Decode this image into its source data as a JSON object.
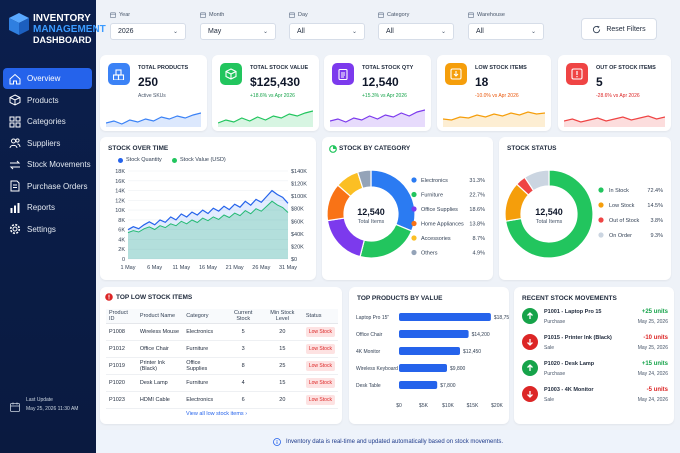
{
  "brand": {
    "line1": "INVENTORY",
    "line2": "MANAGEMENT",
    "line3": "DASHBOARD"
  },
  "colors": {
    "primary": "#2563eb",
    "sidebar": "#0b1f4d",
    "green": "#22c55e",
    "red": "#dc2626",
    "orange": "#f59e0b",
    "purple": "#7c3aed",
    "gray": "#cbd5e1"
  },
  "nav": [
    {
      "label": "Overview",
      "icon": "home-icon"
    },
    {
      "label": "Products",
      "icon": "box-icon"
    },
    {
      "label": "Categories",
      "icon": "grid-icon"
    },
    {
      "label": "Suppliers",
      "icon": "users-icon"
    },
    {
      "label": "Stock Movements",
      "icon": "swap-icon"
    },
    {
      "label": "Purchase Orders",
      "icon": "document-icon"
    },
    {
      "label": "Reports",
      "icon": "chart-icon"
    },
    {
      "label": "Settings",
      "icon": "gear-icon"
    }
  ],
  "last_update": {
    "label": "Last Update",
    "value": "May 25, 2026  11:30 AM"
  },
  "filters": [
    {
      "label": "Year",
      "value": "2026"
    },
    {
      "label": "Month",
      "value": "May"
    },
    {
      "label": "Day",
      "value": "All"
    },
    {
      "label": "Category",
      "value": "All"
    },
    {
      "label": "Warehouse",
      "value": "All"
    }
  ],
  "reset_label": "Reset Filters",
  "kpis": [
    {
      "title": "TOTAL PRODUCTS",
      "value": "250",
      "sub": "Active SKUs",
      "color": "#3b82f6",
      "bg": "#3b82f6",
      "icon": "boxes-icon"
    },
    {
      "title": "TOTAL STOCK VALUE",
      "value": "$125,430",
      "sub": "+18.6% vs Apr 2026",
      "color": "#22c55e",
      "bg": "#22c55e",
      "icon": "cube-icon"
    },
    {
      "title": "TOTAL STOCK QTY",
      "value": "12,540",
      "sub": "+15.3% vs Apr 2026",
      "color": "#7c3aed",
      "bg": "#7c3aed",
      "icon": "clipboard-icon"
    },
    {
      "title": "LOW STOCK ITEMS",
      "value": "18",
      "sub": "-10.0% vs Apr 2026",
      "color": "#f59e0b",
      "bg": "#f59e0b",
      "icon": "download-box-icon"
    },
    {
      "title": "OUT OF STOCK ITEMS",
      "value": "5",
      "sub": "-28.6% vs Apr 2026",
      "color": "#ef4444",
      "bg": "#ef4444",
      "icon": "alert-icon"
    }
  ],
  "stock_over_time": {
    "title": "STOCK OVER TIME",
    "legend": [
      "Stock Quantity",
      "Stock Value (USD)"
    ],
    "left_ticks": [
      "18K",
      "16K",
      "14K",
      "12K",
      "10K",
      "8K",
      "6K",
      "4K",
      "2K",
      "0"
    ],
    "right_ticks": [
      "$140K",
      "$120K",
      "$100K",
      "$80K",
      "$60K",
      "$40K",
      "$20K",
      "$0"
    ],
    "x_ticks": [
      "1 May",
      "6 May",
      "11 May",
      "16 May",
      "21 May",
      "26 May",
      "31 May"
    ]
  },
  "chart_data": [
    {
      "type": "area",
      "title": "STOCK OVER TIME",
      "x": [
        1,
        2,
        3,
        4,
        5,
        6,
        7,
        8,
        9,
        10,
        11,
        12,
        13,
        14,
        15,
        16,
        17,
        18,
        19,
        20,
        21,
        22,
        23,
        24,
        25,
        26,
        27,
        28,
        29,
        30,
        31
      ],
      "x_ticks": [
        "1 May",
        "6 May",
        "11 May",
        "16 May",
        "21 May",
        "26 May",
        "31 May"
      ],
      "series": [
        {
          "name": "Stock Quantity",
          "axis": "left",
          "values": [
            6000,
            6600,
            6200,
            7000,
            7600,
            7000,
            8000,
            7500,
            8600,
            8000,
            9200,
            8600,
            9600,
            9000,
            10000,
            9300,
            10400,
            9800,
            10800,
            10100,
            11200,
            10600,
            11800,
            11000,
            12200,
            11600,
            12800,
            14000,
            13200,
            12600,
            11400
          ]
        },
        {
          "name": "Stock Value (USD)",
          "axis": "right",
          "values": [
            42000,
            45000,
            43000,
            48000,
            51000,
            47000,
            53000,
            50000,
            56000,
            53000,
            60000,
            56000,
            62000,
            58000,
            65000,
            61000,
            67000,
            63000,
            70000,
            66000,
            73000,
            69000,
            77000,
            72000,
            80000,
            76000,
            84000,
            92000,
            86000,
            82000,
            74000
          ]
        }
      ],
      "ylim_left": [
        0,
        18000
      ],
      "ylim_right": [
        0,
        140000
      ],
      "grid": true,
      "legend": "top-left"
    },
    {
      "type": "pie",
      "title": "STOCK BY CATEGORY",
      "categories": [
        "Electronics",
        "Furniture",
        "Office Supplies",
        "Home Appliances",
        "Accessories",
        "Others"
      ],
      "values": [
        31.3,
        22.7,
        18.6,
        13.8,
        8.7,
        4.9
      ],
      "colors": [
        "#2b7bf2",
        "#22c55e",
        "#7c3aed",
        "#f97316",
        "#fbbf24",
        "#94a3b8"
      ],
      "center_value": "12,540",
      "center_label": "Total Items"
    },
    {
      "type": "pie",
      "title": "STOCK STATUS",
      "categories": [
        "In Stock",
        "Low Stock",
        "Out of Stock",
        "On Order"
      ],
      "values": [
        72.4,
        14.5,
        3.8,
        9.3
      ],
      "colors": [
        "#22c55e",
        "#f59e0b",
        "#ef4444",
        "#cbd5e1"
      ],
      "center_value": "12,540",
      "center_label": "Total Items"
    },
    {
      "type": "bar",
      "title": "TOP PRODUCTS BY VALUE",
      "categories": [
        "Laptop Pro 15\"",
        "Office Chair",
        "4K Monitor",
        "Wireless Keyboard",
        "Desk Table"
      ],
      "values": [
        18750,
        14200,
        12450,
        9800,
        7800
      ],
      "value_labels": [
        "$18,750",
        "$14,200",
        "$12,450",
        "$9,800",
        "$7,800"
      ],
      "x_ticks": [
        "$0",
        "$5K",
        "$10K",
        "$15K",
        "$20K"
      ],
      "xlim": [
        0,
        20000
      ]
    }
  ],
  "low_stock": {
    "title": "TOP LOW STOCK ITEMS",
    "headers": [
      "Product ID",
      "Product Name",
      "Category",
      "Current Stock",
      "Min Stock Level",
      "Status"
    ],
    "rows": [
      [
        "P1008",
        "Wireless Mouse",
        "Electronics",
        "5",
        "20",
        "Low Stock"
      ],
      [
        "P1012",
        "Office Chair",
        "Furniture",
        "3",
        "15",
        "Low Stock"
      ],
      [
        "P1019",
        "Printer Ink (Black)",
        "Office Supplies",
        "8",
        "25",
        "Low Stock"
      ],
      [
        "P1020",
        "Desk Lamp",
        "Furniture",
        "4",
        "15",
        "Low Stock"
      ],
      [
        "P1023",
        "HDMI Cable",
        "Electronics",
        "6",
        "20",
        "Low Stock"
      ]
    ],
    "view_all": "View all low stock items"
  },
  "movements": {
    "title": "RECENT STOCK MOVEMENTS",
    "items": [
      {
        "name": "P1001 - Laptop Pro 15",
        "type": "Purchase",
        "qty": "+25 units",
        "date": "May 25, 2026",
        "dir": "in"
      },
      {
        "name": "P1015 - Printer Ink (Black)",
        "type": "Sale",
        "qty": "-10 units",
        "date": "May 25, 2026",
        "dir": "out"
      },
      {
        "name": "P1020 - Desk Lamp",
        "type": "Purchase",
        "qty": "+15 units",
        "date": "May 24, 2026",
        "dir": "in"
      },
      {
        "name": "P1003 - 4K Monitor",
        "type": "Sale",
        "qty": "-5 units",
        "date": "May 24, 2026",
        "dir": "out"
      }
    ]
  },
  "footer_text": "Inventory data is real-time and updated automatically based on stock movements."
}
